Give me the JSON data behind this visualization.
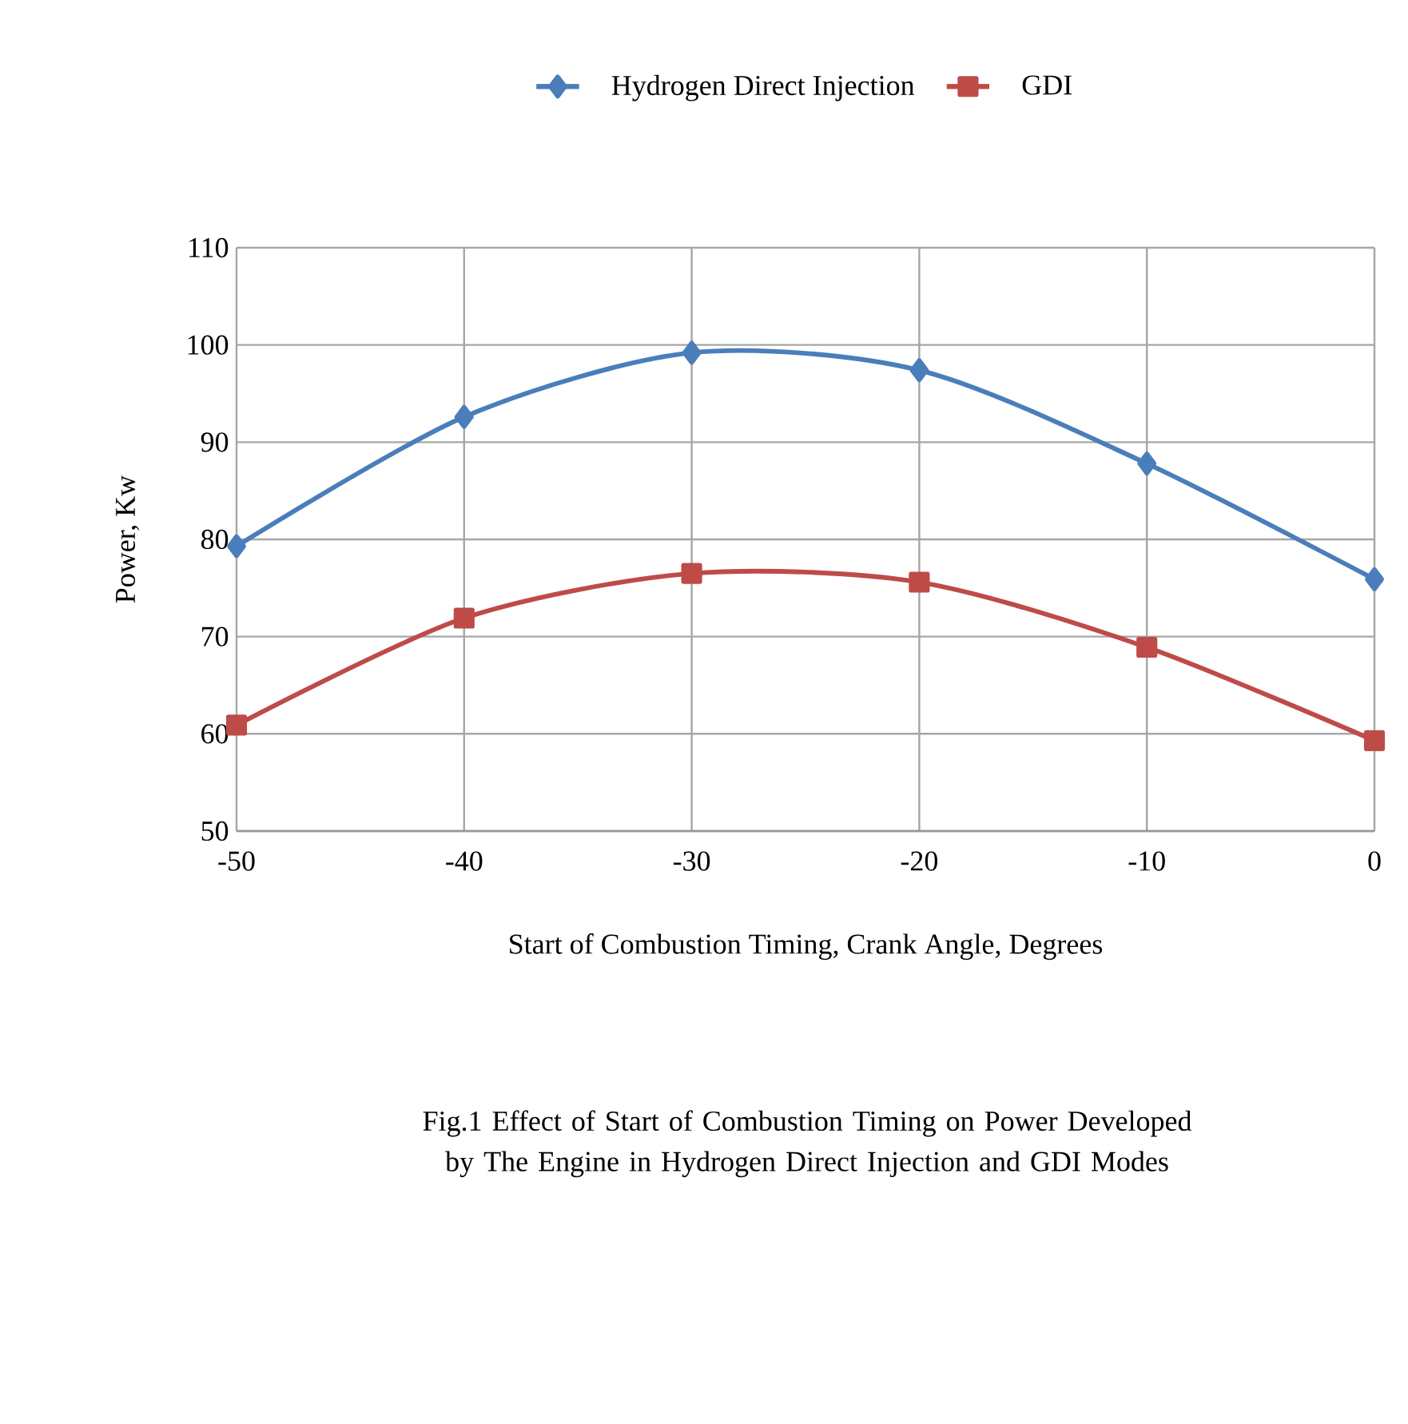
{
  "chart_data": {
    "type": "line",
    "xlabel": "Start of Combustion Timing, Crank Angle, Degrees",
    "ylabel": "Power, Kw",
    "x": [
      -50,
      -40,
      -30,
      -20,
      -10,
      0
    ],
    "series": [
      {
        "name": "Hydrogen Direct Injection",
        "color": "#4a7ebb",
        "marker": "diamond",
        "values": [
          79.3,
          92.6,
          99.2,
          97.4,
          87.8,
          75.9
        ]
      },
      {
        "name": "GDI",
        "color": "#be4b48",
        "marker": "square",
        "values": [
          60.9,
          71.9,
          76.5,
          75.6,
          68.9,
          59.3
        ]
      }
    ],
    "xlim": [
      -50,
      0
    ],
    "xticks": [
      -50,
      -40,
      -30,
      -20,
      -10,
      0
    ],
    "ylim": [
      50,
      110
    ],
    "yticks": [
      50,
      60,
      70,
      80,
      90,
      100,
      110
    ],
    "grid": true,
    "legend": "top",
    "line_style": "solid",
    "annotations": [
      "Fig.1 Effect of Start of Combustion Timing on Power Developed by The Engine in Hydrogen Direct Injection and GDI Modes"
    ]
  }
}
